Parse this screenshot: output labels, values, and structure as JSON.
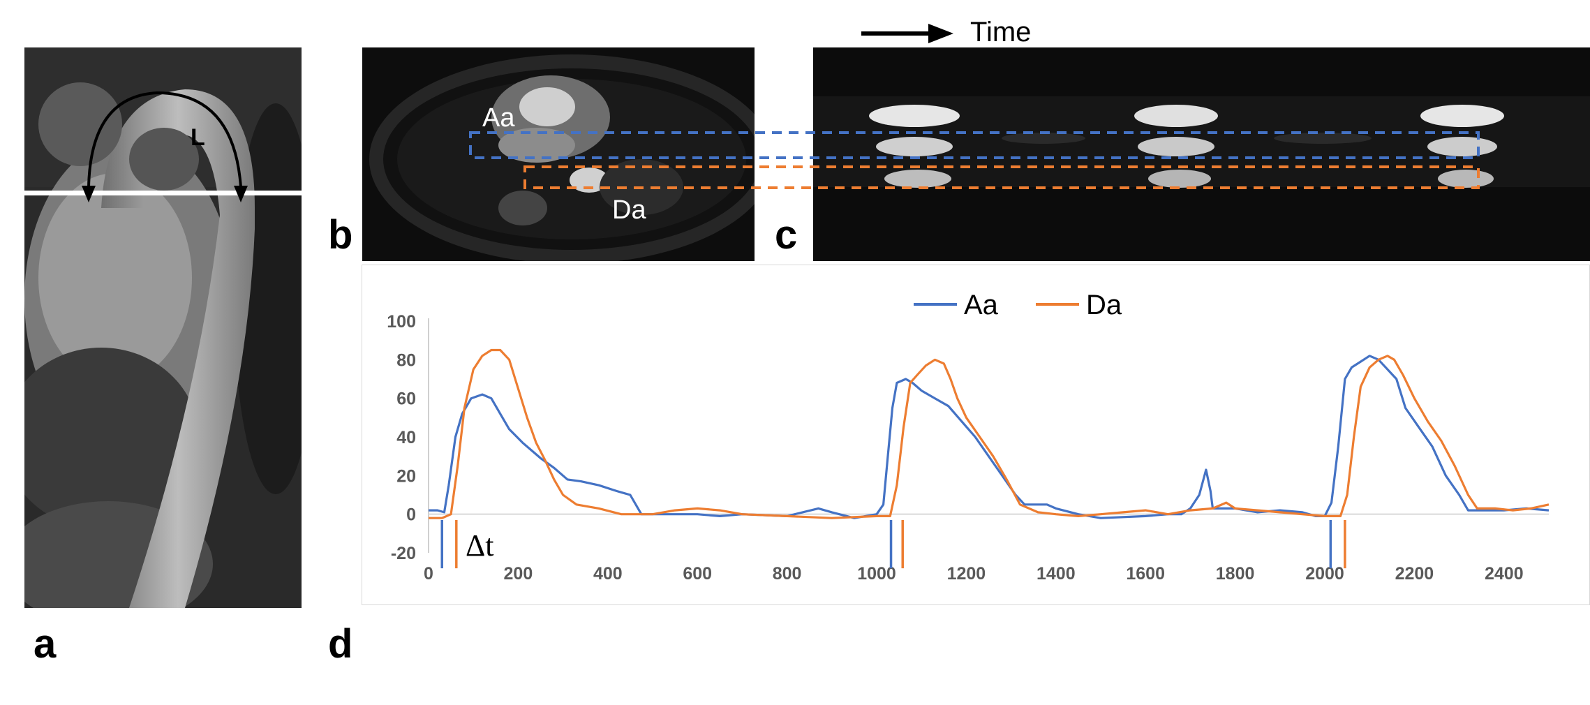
{
  "figure": {
    "panel_labels": {
      "a": "a",
      "b": "b",
      "c": "c",
      "d": "d"
    },
    "panel_a": {
      "arc_label": "L"
    },
    "panel_b": {
      "label_aa": "Aa",
      "label_da": "Da"
    },
    "panel_c": {
      "time_label": "Time"
    },
    "delta_label": "Δt"
  },
  "colors": {
    "aa": "#4472C4",
    "da": "#ED7D31",
    "axis": "#595959"
  },
  "chart_data": {
    "type": "line",
    "title": "",
    "xlabel": "",
    "ylabel": "",
    "xlim": [
      0,
      2500
    ],
    "ylim": [
      -20,
      100
    ],
    "x_ticks": [
      0,
      200,
      400,
      600,
      800,
      1000,
      1200,
      1400,
      1600,
      1800,
      2000,
      2200,
      2400
    ],
    "y_ticks": [
      -20,
      0,
      20,
      40,
      60,
      80,
      100
    ],
    "grid": false,
    "legend": "top-center",
    "series": [
      {
        "name": "Aa",
        "color": "#4472C4",
        "points": [
          [
            0,
            2
          ],
          [
            20,
            2
          ],
          [
            35,
            1
          ],
          [
            45,
            15
          ],
          [
            60,
            40
          ],
          [
            75,
            52
          ],
          [
            95,
            60
          ],
          [
            120,
            62
          ],
          [
            140,
            60
          ],
          [
            160,
            52
          ],
          [
            180,
            44
          ],
          [
            210,
            37
          ],
          [
            250,
            29
          ],
          [
            280,
            24
          ],
          [
            310,
            18
          ],
          [
            340,
            17
          ],
          [
            380,
            15
          ],
          [
            420,
            12
          ],
          [
            450,
            10
          ],
          [
            475,
            0
          ],
          [
            500,
            0
          ],
          [
            600,
            0
          ],
          [
            650,
            -1
          ],
          [
            700,
            0
          ],
          [
            800,
            -1
          ],
          [
            870,
            3
          ],
          [
            900,
            1
          ],
          [
            950,
            -2
          ],
          [
            1000,
            0
          ],
          [
            1015,
            5
          ],
          [
            1025,
            30
          ],
          [
            1035,
            55
          ],
          [
            1045,
            68
          ],
          [
            1065,
            70
          ],
          [
            1080,
            68
          ],
          [
            1100,
            64
          ],
          [
            1130,
            60
          ],
          [
            1160,
            56
          ],
          [
            1190,
            48
          ],
          [
            1220,
            40
          ],
          [
            1250,
            30
          ],
          [
            1280,
            20
          ],
          [
            1310,
            10
          ],
          [
            1330,
            5
          ],
          [
            1380,
            5
          ],
          [
            1400,
            3
          ],
          [
            1450,
            0
          ],
          [
            1500,
            -2
          ],
          [
            1600,
            -1
          ],
          [
            1650,
            0
          ],
          [
            1680,
            0
          ],
          [
            1700,
            3
          ],
          [
            1720,
            10
          ],
          [
            1735,
            23
          ],
          [
            1745,
            12
          ],
          [
            1750,
            3
          ],
          [
            1800,
            3
          ],
          [
            1850,
            1
          ],
          [
            1900,
            2
          ],
          [
            1950,
            1
          ],
          [
            1980,
            -1
          ],
          [
            2000,
            -1
          ],
          [
            2015,
            6
          ],
          [
            2030,
            35
          ],
          [
            2045,
            70
          ],
          [
            2060,
            76
          ],
          [
            2080,
            79
          ],
          [
            2100,
            82
          ],
          [
            2120,
            80
          ],
          [
            2140,
            75
          ],
          [
            2160,
            70
          ],
          [
            2180,
            55
          ],
          [
            2210,
            45
          ],
          [
            2240,
            35
          ],
          [
            2270,
            20
          ],
          [
            2300,
            10
          ],
          [
            2320,
            2
          ],
          [
            2350,
            2
          ],
          [
            2400,
            2
          ],
          [
            2450,
            3
          ],
          [
            2500,
            2
          ]
        ]
      },
      {
        "name": "Da",
        "color": "#ED7D31",
        "points": [
          [
            0,
            -2
          ],
          [
            30,
            -2
          ],
          [
            50,
            0
          ],
          [
            65,
            25
          ],
          [
            80,
            55
          ],
          [
            100,
            75
          ],
          [
            120,
            82
          ],
          [
            140,
            85
          ],
          [
            160,
            85
          ],
          [
            180,
            80
          ],
          [
            200,
            65
          ],
          [
            220,
            50
          ],
          [
            240,
            37
          ],
          [
            260,
            28
          ],
          [
            280,
            18
          ],
          [
            300,
            10
          ],
          [
            330,
            5
          ],
          [
            380,
            3
          ],
          [
            430,
            0
          ],
          [
            500,
            0
          ],
          [
            550,
            2
          ],
          [
            600,
            3
          ],
          [
            650,
            2
          ],
          [
            700,
            0
          ],
          [
            800,
            -1
          ],
          [
            900,
            -2
          ],
          [
            1000,
            -1
          ],
          [
            1030,
            -1
          ],
          [
            1045,
            15
          ],
          [
            1060,
            45
          ],
          [
            1075,
            68
          ],
          [
            1090,
            72
          ],
          [
            1110,
            77
          ],
          [
            1130,
            80
          ],
          [
            1150,
            78
          ],
          [
            1165,
            70
          ],
          [
            1180,
            60
          ],
          [
            1200,
            50
          ],
          [
            1230,
            40
          ],
          [
            1260,
            30
          ],
          [
            1290,
            18
          ],
          [
            1320,
            5
          ],
          [
            1360,
            1
          ],
          [
            1400,
            0
          ],
          [
            1450,
            -1
          ],
          [
            1500,
            0
          ],
          [
            1550,
            1
          ],
          [
            1600,
            2
          ],
          [
            1650,
            0
          ],
          [
            1700,
            2
          ],
          [
            1750,
            3
          ],
          [
            1780,
            6
          ],
          [
            1800,
            3
          ],
          [
            1850,
            2
          ],
          [
            1900,
            1
          ],
          [
            1950,
            0
          ],
          [
            2000,
            -1
          ],
          [
            2035,
            -1
          ],
          [
            2050,
            10
          ],
          [
            2065,
            40
          ],
          [
            2080,
            66
          ],
          [
            2100,
            76
          ],
          [
            2120,
            80
          ],
          [
            2140,
            82
          ],
          [
            2155,
            80
          ],
          [
            2175,
            72
          ],
          [
            2200,
            60
          ],
          [
            2230,
            48
          ],
          [
            2260,
            38
          ],
          [
            2290,
            25
          ],
          [
            2320,
            10
          ],
          [
            2340,
            3
          ],
          [
            2380,
            3
          ],
          [
            2420,
            2
          ],
          [
            2460,
            3
          ],
          [
            2500,
            5
          ]
        ]
      }
    ],
    "onset_markers": [
      {
        "series": "Aa",
        "x": 30
      },
      {
        "series": "Da",
        "x": 62
      },
      {
        "series": "Aa",
        "x": 1032
      },
      {
        "series": "Da",
        "x": 1058
      },
      {
        "series": "Aa",
        "x": 2013
      },
      {
        "series": "Da",
        "x": 2045
      }
    ]
  }
}
